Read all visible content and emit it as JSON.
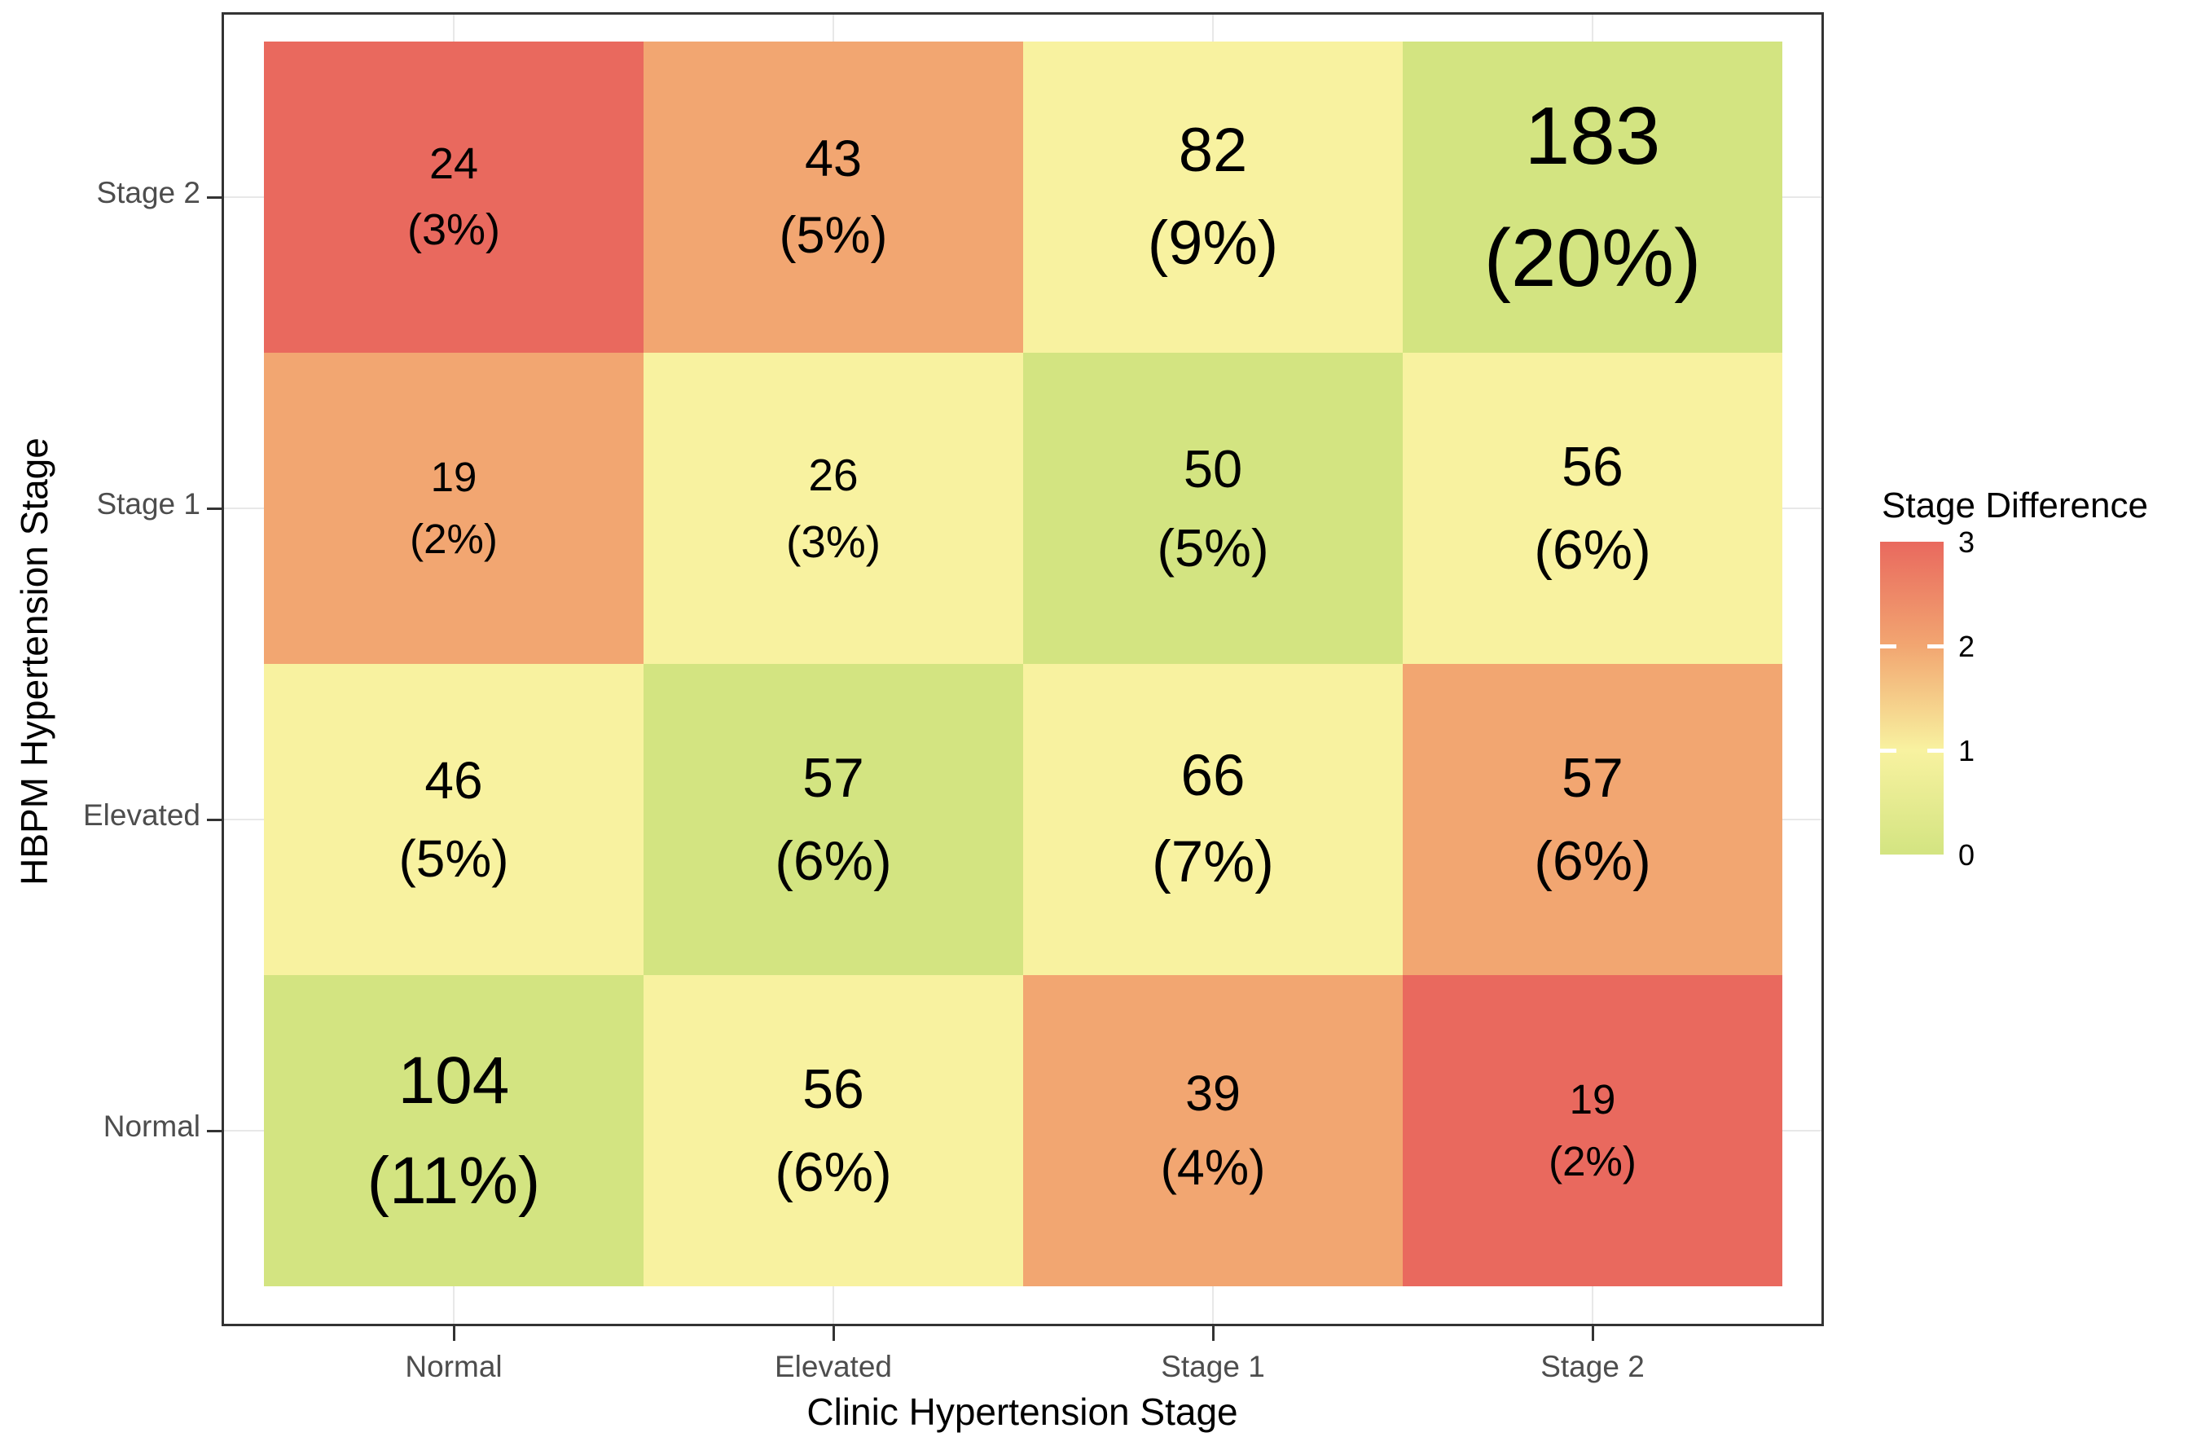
{
  "chart_data": {
    "type": "heatmap",
    "title": "",
    "xlabel": "Clinic Hypertension Stage",
    "ylabel": "HBPM Hypertension Stage",
    "x_categories": [
      "Normal",
      "Elevated",
      "Stage 1",
      "Stage 2"
    ],
    "y_categories_top_to_bottom": [
      "Stage 2",
      "Stage 1",
      "Elevated",
      "Normal"
    ],
    "legend": {
      "title": "Stage Difference",
      "tick_labels": [
        "3",
        "2",
        "1",
        "0"
      ],
      "range": [
        0,
        3
      ],
      "position": "right"
    },
    "diff_colors": {
      "0": "#d3e481",
      "1": "#f8f2a0",
      "2": "#f2a671",
      "3": "#e9695e"
    },
    "grid": "light",
    "rows": [
      {
        "y": "Stage 2",
        "cells": [
          {
            "x": "Normal",
            "count": 24,
            "pct_label": "(3%)",
            "diff": 3
          },
          {
            "x": "Elevated",
            "count": 43,
            "pct_label": "(5%)",
            "diff": 2
          },
          {
            "x": "Stage 1",
            "count": 82,
            "pct_label": "(9%)",
            "diff": 1
          },
          {
            "x": "Stage 2",
            "count": 183,
            "pct_label": "(20%)",
            "diff": 0
          }
        ]
      },
      {
        "y": "Stage 1",
        "cells": [
          {
            "x": "Normal",
            "count": 19,
            "pct_label": "(2%)",
            "diff": 2
          },
          {
            "x": "Elevated",
            "count": 26,
            "pct_label": "(3%)",
            "diff": 1
          },
          {
            "x": "Stage 1",
            "count": 50,
            "pct_label": "(5%)",
            "diff": 0
          },
          {
            "x": "Stage 2",
            "count": 56,
            "pct_label": "(6%)",
            "diff": 1
          }
        ]
      },
      {
        "y": "Elevated",
        "cells": [
          {
            "x": "Normal",
            "count": 46,
            "pct_label": "(5%)",
            "diff": 1
          },
          {
            "x": "Elevated",
            "count": 57,
            "pct_label": "(6%)",
            "diff": 0
          },
          {
            "x": "Stage 1",
            "count": 66,
            "pct_label": "(7%)",
            "diff": 1
          },
          {
            "x": "Stage 2",
            "count": 57,
            "pct_label": "(6%)",
            "diff": 2
          }
        ]
      },
      {
        "y": "Normal",
        "cells": [
          {
            "x": "Normal",
            "count": 104,
            "pct_label": "(11%)",
            "diff": 0
          },
          {
            "x": "Elevated",
            "count": 56,
            "pct_label": "(6%)",
            "diff": 1
          },
          {
            "x": "Stage 1",
            "count": 39,
            "pct_label": "(4%)",
            "diff": 2
          },
          {
            "x": "Stage 2",
            "count": 19,
            "pct_label": "(2%)",
            "diff": 3
          }
        ]
      }
    ]
  }
}
